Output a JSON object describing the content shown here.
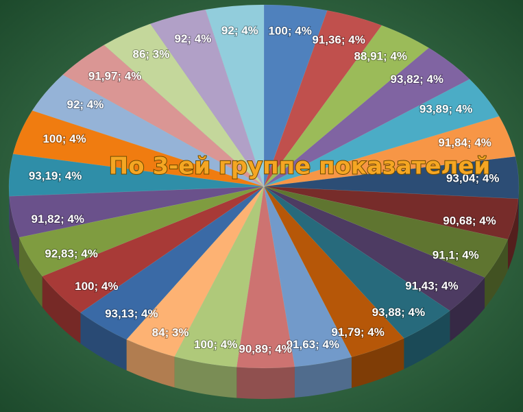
{
  "chart_data": {
    "type": "pie",
    "title": "По 3-ей группе показателей",
    "values": [
      100,
      91.36,
      88.91,
      93.82,
      93.89,
      91.84,
      93.04,
      90.68,
      91.1,
      91.43,
      93.88,
      91.79,
      91.63,
      90.89,
      100,
      84,
      93.13,
      100,
      92.83,
      91.82,
      93.19,
      100,
      92,
      91.97,
      86,
      92,
      92
    ],
    "value_labels": [
      "100; 4%",
      "91,36; 4%",
      "88,91; 4%",
      "93,82; 4%",
      "93,89; 4%",
      "91,84; 4%",
      "93,04; 4%",
      "90,68; 4%",
      "91,1; 4%",
      "91,43; 4%",
      "93,88; 4%",
      "91,79; 4%",
      "91,63; 4%",
      "90,89; 4%",
      "100; 4%",
      "84; 3%",
      "93,13; 4%",
      "100; 4%",
      "92,83; 4%",
      "91,82; 4%",
      "93,19; 4%",
      "100; 4%",
      "92; 4%",
      "91,97; 4%",
      "86; 3%",
      "92; 4%",
      "92; 4%"
    ],
    "colors": [
      "#4f81bd",
      "#c0504d",
      "#9bbb59",
      "#8064a2",
      "#4bacc6",
      "#f79646",
      "#2c4d75",
      "#772c2a",
      "#5f7530",
      "#4d3b62",
      "#276a7c",
      "#b65708",
      "#729aca",
      "#cd7371",
      "#afc97a",
      "#fdb273",
      "#3a6aa6",
      "#a83a37",
      "#7f9c40",
      "#6a518b",
      "#2f8ea8",
      "#f07c10",
      "#95b3d7",
      "#da9694",
      "#c4d79b",
      "#b1a0c7",
      "#92cddc"
    ]
  }
}
